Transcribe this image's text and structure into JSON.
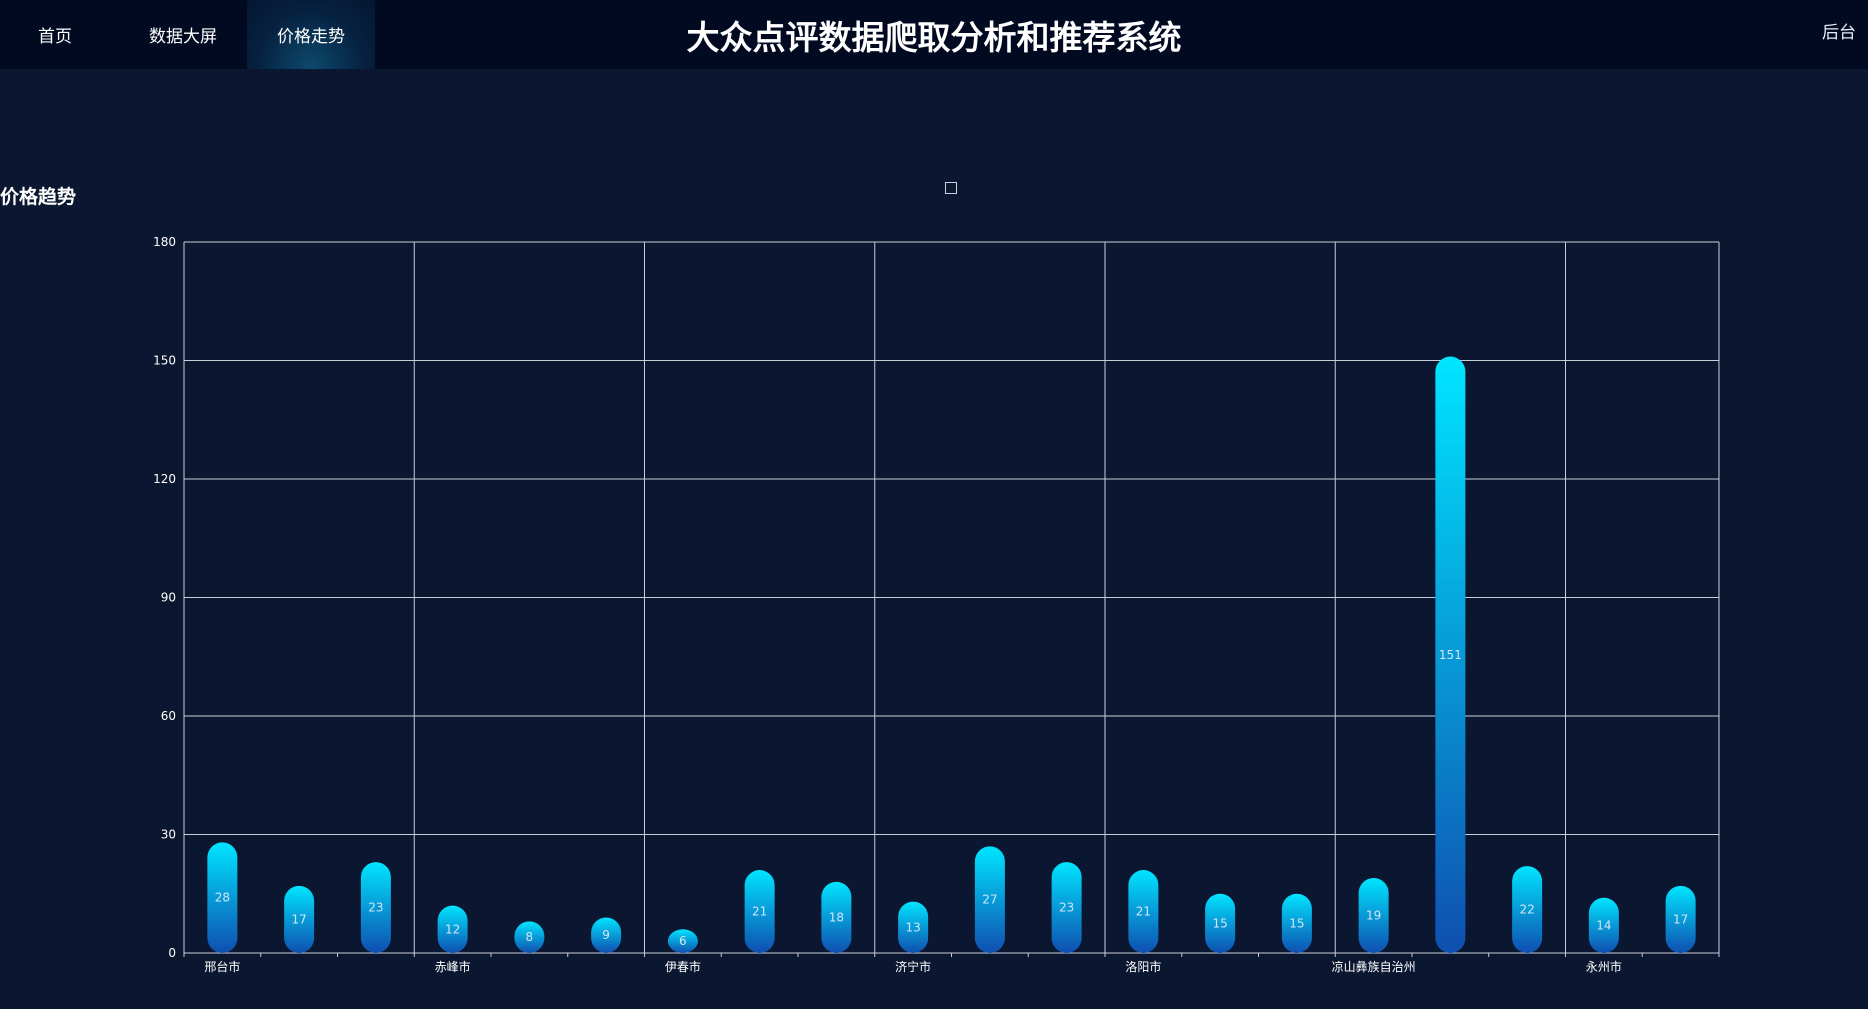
{
  "nav": {
    "items": [
      {
        "label": "首页",
        "active": false
      },
      {
        "label": "数据大屏",
        "active": false
      },
      {
        "label": "价格走势",
        "active": true
      }
    ],
    "title": "大众点评数据爬取分析和推荐系统",
    "admin_label": "后台"
  },
  "section": {
    "title": "价格趋势"
  },
  "chart_data": {
    "type": "bar",
    "title": "",
    "xlabel": "",
    "ylabel": "",
    "ylim": [
      0,
      180
    ],
    "yticks": [
      0,
      30,
      60,
      90,
      120,
      150,
      180
    ],
    "grid": true,
    "legend": "top-center",
    "category_labels": [
      "邢台市",
      "赤峰市",
      "伊春市",
      "济宁市",
      "洛阳市",
      "凉山彝族自治州",
      "永州市"
    ],
    "values": [
      28,
      17,
      23,
      12,
      8,
      9,
      6,
      21,
      18,
      13,
      27,
      23,
      21,
      15,
      15,
      19,
      151,
      22,
      14,
      17
    ],
    "colors": {
      "bar_top": "#00e5ff",
      "bar_bottom": "#0f4fb0",
      "grid": "#c8ced8",
      "label": "#cfe7f5"
    }
  }
}
